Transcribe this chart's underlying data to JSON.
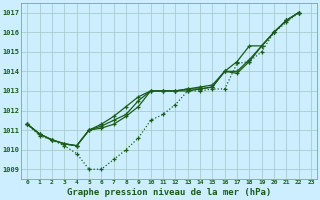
{
  "title": "Graphe pression niveau de la mer (hPa)",
  "background_color": "#cceeff",
  "grid_color": "#aacccc",
  "line_color": "#1a5c1a",
  "xlim": [
    -0.5,
    23.5
  ],
  "ylim": [
    1008.5,
    1017.5
  ],
  "yticks": [
    1009,
    1010,
    1011,
    1012,
    1013,
    1014,
    1015,
    1016,
    1017
  ],
  "xticks": [
    0,
    1,
    2,
    3,
    4,
    5,
    6,
    7,
    8,
    9,
    10,
    11,
    12,
    13,
    14,
    15,
    16,
    17,
    18,
    19,
    20,
    21,
    22,
    23
  ],
  "series_solid": [
    [
      1011.3,
      1010.8,
      1010.5,
      1010.3,
      1010.2,
      1011.0,
      1011.1,
      1011.3,
      1011.7,
      1012.2,
      1013.0,
      1013.0,
      1013.0,
      1013.0,
      1013.1,
      1013.2,
      1014.0,
      1013.9,
      1014.5,
      1015.3,
      1016.0,
      1016.6,
      1017.0
    ],
    [
      1011.3,
      1010.8,
      1010.5,
      1010.3,
      1010.2,
      1011.0,
      1011.2,
      1011.5,
      1011.8,
      1012.5,
      1013.0,
      1013.0,
      1013.0,
      1013.1,
      1013.1,
      1013.2,
      1014.0,
      1014.0,
      1014.6,
      1015.3,
      1016.0,
      1016.6,
      1017.0
    ],
    [
      1011.3,
      1010.8,
      1010.5,
      1010.3,
      1010.2,
      1011.0,
      1011.3,
      1011.7,
      1012.2,
      1012.7,
      1013.0,
      1013.0,
      1013.0,
      1013.1,
      1013.2,
      1013.3,
      1014.0,
      1014.5,
      1015.3,
      1015.3,
      1016.0,
      1016.6,
      1017.0
    ]
  ],
  "series_dotted": [
    1011.3,
    1010.7,
    1010.5,
    1010.2,
    1009.8,
    1009.0,
    1009.0,
    1009.5,
    1010.0,
    1010.6,
    1011.5,
    1011.8,
    1012.3,
    1013.0,
    1013.0,
    1013.1,
    1013.1,
    1014.4,
    1014.5,
    1015.0,
    1016.0,
    1016.5,
    1017.0
  ]
}
